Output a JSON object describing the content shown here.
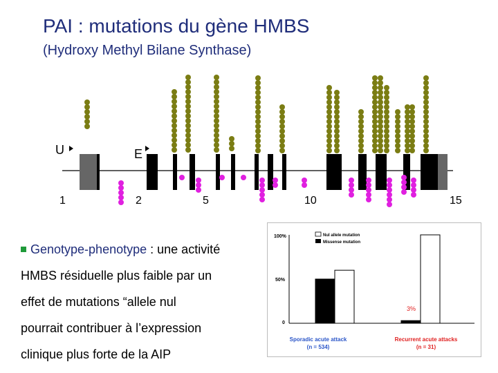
{
  "header": {
    "title": "PAI : mutations du gène HMBS",
    "subtitle": "(Hydroxy Methyl Bilane Synthase)"
  },
  "gene_map": {
    "promoter_labels": [
      "U",
      "E"
    ],
    "exon_numbers": [
      "1",
      "2",
      "5",
      "10",
      "15"
    ],
    "colors": {
      "exon": "#000000",
      "untranslated": "#666666",
      "above": "#7b7d14",
      "below": "#e020e0",
      "line": "#000000"
    }
  },
  "text": {
    "bullet_lead": "Genotype-phenotype",
    "bullet_rest": " : une activité",
    "lines": [
      "HMBS résiduelle plus faible par un",
      "effet de mutations “allele nul",
      "pourrait contribuer à l’expression",
      "clinique plus forte de la AIP"
    ]
  },
  "chart_data": {
    "type": "bar",
    "categories": [
      "Sporadic acute attack",
      "Recurrent acute attacks"
    ],
    "category_counts": [
      "(n = 534)",
      "(n = 31)"
    ],
    "series": [
      {
        "name": "Missense mutation",
        "values": [
          50,
          3
        ]
      },
      {
        "name": "Nul allele mutation",
        "values": [
          60,
          100
        ]
      }
    ],
    "yticks": [
      "100%",
      "50%",
      "0"
    ],
    "ylim": [
      0,
      100
    ],
    "annotation": "3%",
    "legend_position": "top-left",
    "colors": {
      "Missense mutation": "#000000",
      "Nul allele mutation": "#ffffff",
      "category_label": "#2a55c8",
      "category_label_recurrent": "#e02020",
      "annotation": "#e02020"
    }
  }
}
